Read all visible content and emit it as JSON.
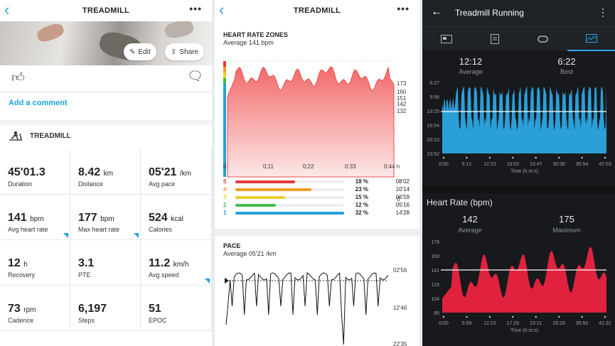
{
  "p1": {
    "title": "TREADMILL",
    "back_icon": "chevron-left-icon",
    "more": "•••",
    "edit_label": "Edit",
    "share_label": "Share",
    "add_comment": "Add a comment",
    "section_title": "TREADMILL",
    "stats": [
      {
        "value": "45'01.3",
        "unit": "",
        "label": "Duration",
        "badge": false
      },
      {
        "value": "8.42",
        "unit": "km",
        "label": "Distance",
        "badge": false
      },
      {
        "value": "05'21",
        "unit": "/km",
        "label": "Avg pace",
        "badge": false
      },
      {
        "value": "141",
        "unit": "bpm",
        "label": "Avg heart rate",
        "badge": true
      },
      {
        "value": "177",
        "unit": "bpm",
        "label": "Max heart rate",
        "badge": true
      },
      {
        "value": "524",
        "unit": "kcal",
        "label": "Calories",
        "badge": false
      },
      {
        "value": "12",
        "unit": "h",
        "label": "Recovery",
        "badge": false
      },
      {
        "value": "3.1",
        "unit": "",
        "label": "PTE",
        "badge": false
      },
      {
        "value": "11.2",
        "unit": "km/h",
        "label": "Avg speed",
        "badge": true
      },
      {
        "value": "73",
        "unit": "rpm",
        "label": "Cadence",
        "badge": false
      },
      {
        "value": "6,197",
        "unit": "",
        "label": "Steps",
        "badge": false
      },
      {
        "value": "51",
        "unit": "",
        "label": "EPOC",
        "badge": false
      }
    ]
  },
  "p2": {
    "title": "TREADMILL",
    "more": "•••",
    "hr_title": "HEART RATE ZONES",
    "hr_sub": "Average 141 bpm",
    "hr_right_ticks": [
      "173",
      "160",
      "151",
      "142",
      "132",
      "0"
    ],
    "hr_x_ticks": [
      "0",
      "0:11",
      "0:22",
      "0:33",
      "0:44 h"
    ],
    "zones": [
      {
        "num": "5",
        "pct": "18 %",
        "time": "08'02",
        "frac": 0.55,
        "color": "#e5393b"
      },
      {
        "num": "4",
        "pct": "23 %",
        "time": "10'14",
        "frac": 0.7,
        "color": "#f39c1f"
      },
      {
        "num": "3",
        "pct": "15 %",
        "time": "06'59",
        "frac": 0.46,
        "color": "#e8d12e"
      },
      {
        "num": "2",
        "pct": "12 %",
        "time": "05'16",
        "frac": 0.37,
        "color": "#3fbf4a"
      },
      {
        "num": "1",
        "pct": "32 %",
        "time": "14'28",
        "frac": 1.0,
        "color": "#2a9fd8"
      }
    ],
    "pace_title": "PACE",
    "pace_sub": "Average 05'21 /km",
    "pace_ticks": [
      "02'56",
      "12'46",
      "22'35"
    ]
  },
  "p3": {
    "title": "Treadmill Running",
    "tab_icons": [
      "summary-card-icon",
      "notes-icon",
      "laps-icon",
      "chart-icon"
    ],
    "pace": {
      "avg_val": "12:12",
      "avg_lbl": "Average",
      "best_val": "6:22",
      "best_lbl": "Best",
      "y_ticks": [
        "6:27",
        "9:56",
        "13:25",
        "16:54",
        "20:23",
        "23:52"
      ],
      "x_ticks": [
        "0:00",
        "6:12",
        "12:23",
        "18:03",
        "23:47",
        "30:36",
        "36:54",
        "42:53"
      ],
      "x_label": "Time (h:m:s)"
    },
    "hr": {
      "title": "Heart Rate (bpm)",
      "avg_val": "142",
      "avg_lbl": "Average",
      "max_val": "175",
      "max_lbl": "Maximum",
      "y_ticks": [
        "178",
        "160",
        "141",
        "123",
        "104",
        "85"
      ],
      "x_ticks": [
        "0:00",
        "5:59",
        "12:10",
        "17:29",
        "23:21",
        "29:26",
        "35:50",
        "41:31"
      ],
      "x_label": "Time (h:m:s)"
    }
  }
}
